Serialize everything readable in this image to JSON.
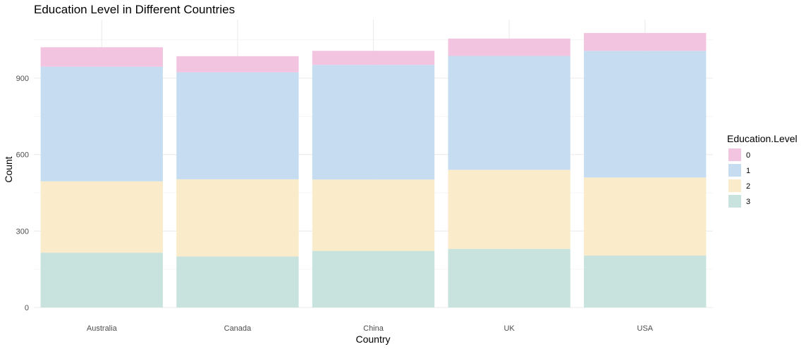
{
  "chart_data": {
    "type": "bar",
    "stacked": true,
    "title": "Education Level in Different Countries",
    "xlabel": "Country",
    "ylabel": "Count",
    "categories": [
      "Australia",
      "Canada",
      "China",
      "UK",
      "USA"
    ],
    "ylim": [
      0,
      1100
    ],
    "yticks": [
      0,
      300,
      600,
      900
    ],
    "grid": true,
    "legend": {
      "title": "Education.Level",
      "placement": "right"
    },
    "series": [
      {
        "name": "3",
        "color": "#c8e3de",
        "values": [
          215,
          200,
          222,
          230,
          204
        ]
      },
      {
        "name": "2",
        "color": "#faebca",
        "values": [
          280,
          303,
          280,
          310,
          306
        ]
      },
      {
        "name": "1",
        "color": "#c6ddf1",
        "values": [
          450,
          420,
          450,
          447,
          497
        ]
      },
      {
        "name": "0",
        "color": "#f3c4e0",
        "values": [
          76,
          63,
          55,
          68,
          70
        ]
      }
    ]
  }
}
